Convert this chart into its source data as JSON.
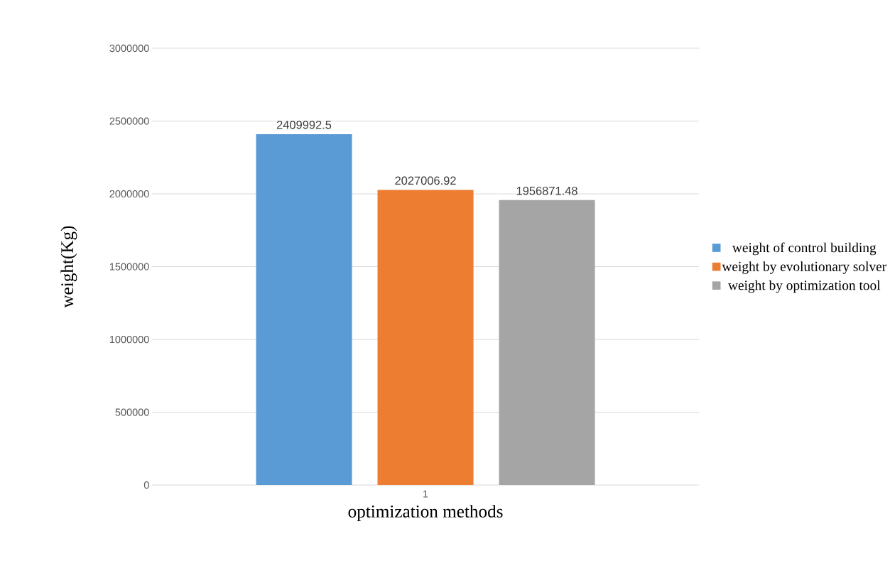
{
  "chart_data": {
    "type": "bar",
    "xlabel": "optimization methods",
    "ylabel": "weight(Kg)",
    "categories": [
      "1"
    ],
    "series": [
      {
        "name": "weight of control building",
        "color": "#5b9bd5",
        "values": [
          2409992.5
        ]
      },
      {
        "name": "weight by evolutionary solver",
        "color": "#ed7d31",
        "values": [
          2027006.92
        ]
      },
      {
        "name": "weight by optimization tool",
        "color": "#a5a5a5",
        "values": [
          1956871.48
        ]
      }
    ],
    "ylim": [
      0,
      3000000
    ],
    "yticks": [
      0,
      500000,
      1000000,
      1500000,
      2000000,
      2500000,
      3000000
    ],
    "grid": "y",
    "legend": "right",
    "data_labels": true
  }
}
